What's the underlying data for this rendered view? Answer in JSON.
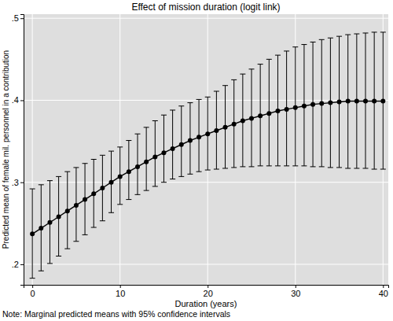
{
  "chart_data": {
    "type": "line",
    "title": "Effect of mission duration (logit link)",
    "x_label": "Duration (years)",
    "y_label": "Predicted mean of female mil. personnel in a contribution",
    "annotation": "Note: Marginal predicted means with 95% confidence intervals",
    "x": [
      0,
      1,
      2,
      3,
      4,
      5,
      6,
      7,
      8,
      9,
      10,
      11,
      12,
      13,
      14,
      15,
      16,
      17,
      18,
      19,
      20,
      21,
      22,
      23,
      24,
      25,
      26,
      27,
      28,
      29,
      30,
      31,
      32,
      33,
      34,
      35,
      36,
      37,
      38,
      39,
      40
    ],
    "series": [
      {
        "color": "#000000",
        "marker": "circle",
        "line_style": "solid",
        "values": [
          0.237,
          0.244,
          0.251,
          0.258,
          0.265,
          0.272,
          0.279,
          0.286,
          0.293,
          0.3,
          0.307,
          0.313,
          0.319,
          0.325,
          0.331,
          0.336,
          0.341,
          0.346,
          0.351,
          0.355,
          0.359,
          0.363,
          0.367,
          0.371,
          0.375,
          0.378,
          0.381,
          0.384,
          0.387,
          0.389,
          0.391,
          0.393,
          0.395,
          0.396,
          0.397,
          0.398,
          0.399,
          0.399,
          0.399,
          0.399,
          0.399
        ],
        "lower": [
          0.183,
          0.192,
          0.201,
          0.21,
          0.219,
          0.228,
          0.236,
          0.245,
          0.253,
          0.263,
          0.273,
          0.279,
          0.285,
          0.29,
          0.295,
          0.3,
          0.304,
          0.307,
          0.31,
          0.313,
          0.315,
          0.316,
          0.317,
          0.318,
          0.319,
          0.319,
          0.32,
          0.32,
          0.32,
          0.32,
          0.32,
          0.32,
          0.319,
          0.319,
          0.318,
          0.318,
          0.317,
          0.317,
          0.317,
          0.316,
          0.316
        ],
        "upper": [
          0.292,
          0.297,
          0.302,
          0.307,
          0.313,
          0.318,
          0.323,
          0.328,
          0.333,
          0.338,
          0.343,
          0.351,
          0.359,
          0.367,
          0.375,
          0.382,
          0.388,
          0.393,
          0.397,
          0.401,
          0.404,
          0.411,
          0.418,
          0.425,
          0.432,
          0.438,
          0.444,
          0.45,
          0.455,
          0.46,
          0.465,
          0.468,
          0.471,
          0.474,
          0.476,
          0.478,
          0.48,
          0.481,
          0.482,
          0.483,
          0.483
        ]
      }
    ],
    "xlim": [
      -1,
      40.6
    ],
    "ylim": [
      0.175,
      0.505
    ],
    "xticks": [
      0,
      10,
      20,
      30,
      40
    ],
    "yticks": [
      {
        "value": 0.2,
        "label": ".2"
      },
      {
        "value": 0.3,
        "label": ".3"
      },
      {
        "value": 0.4,
        "label": ".4"
      },
      {
        "value": 0.5,
        "label": ".5"
      }
    ],
    "grid": true
  }
}
